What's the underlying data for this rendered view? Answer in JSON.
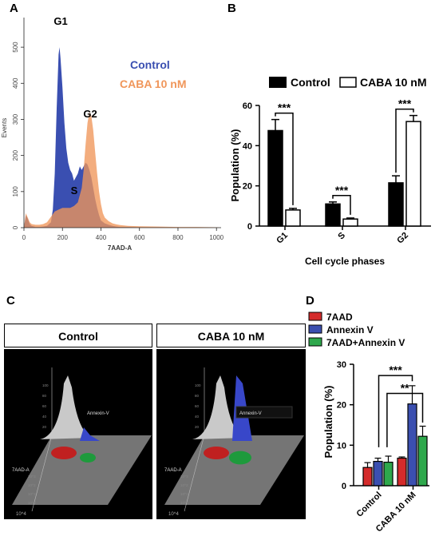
{
  "panels": {
    "a": "A",
    "b": "B",
    "c": "C",
    "d": "D"
  },
  "chart_data": [
    {
      "type": "area",
      "panel": "A",
      "ylabel": "Events",
      "xlabel": "7AAD-A",
      "xlim": [
        0,
        1024
      ],
      "ylim": [
        0,
        560
      ],
      "x_ticks": [
        "0",
        "200",
        "400",
        "600",
        "800",
        "1000"
      ],
      "y_ticks": [
        "0",
        "100",
        "200",
        "300",
        "400",
        "500"
      ],
      "annotations": [
        "G1",
        "S",
        "G2"
      ],
      "legend": [
        "Control",
        "CABA 10 nM"
      ],
      "colors": {
        "Control": "#3a4fb1",
        "CABA": "#f0965a"
      },
      "series": [
        {
          "name": "Control",
          "x": [
            0,
            10,
            20,
            30,
            40,
            60,
            80,
            100,
            120,
            140,
            150,
            160,
            170,
            180,
            185,
            190,
            200,
            210,
            220,
            230,
            240,
            250,
            260,
            270,
            280,
            290,
            300,
            310,
            320,
            330,
            340,
            350,
            360,
            370,
            380,
            390,
            400,
            420,
            440,
            460,
            480,
            500,
            540,
            600,
            700,
            800,
            900,
            1024
          ],
          "y": [
            0,
            35,
            25,
            10,
            5,
            2,
            2,
            3,
            5,
            15,
            50,
            150,
            330,
            480,
            500,
            470,
            390,
            290,
            220,
            180,
            160,
            150,
            130,
            140,
            150,
            170,
            160,
            170,
            180,
            175,
            160,
            140,
            110,
            80,
            55,
            35,
            20,
            12,
            8,
            5,
            3,
            2,
            2,
            1,
            1,
            0,
            0,
            0
          ]
        },
        {
          "name": "CABA 10 nM",
          "x": [
            0,
            10,
            20,
            30,
            40,
            60,
            80,
            100,
            120,
            140,
            160,
            180,
            200,
            220,
            240,
            260,
            280,
            300,
            310,
            320,
            330,
            340,
            350,
            360,
            370,
            380,
            390,
            400,
            410,
            420,
            440,
            460,
            480,
            500,
            540,
            600,
            700,
            800,
            900,
            1000,
            1024
          ],
          "y": [
            0,
            40,
            28,
            15,
            10,
            8,
            8,
            10,
            15,
            30,
            45,
            50,
            55,
            55,
            55,
            60,
            70,
            110,
            160,
            230,
            290,
            320,
            310,
            270,
            210,
            150,
            100,
            65,
            40,
            28,
            18,
            12,
            9,
            7,
            5,
            4,
            3,
            2,
            2,
            1,
            0
          ]
        }
      ]
    },
    {
      "type": "bar",
      "panel": "B",
      "ylabel": "Population (%)",
      "xlabel": "Cell cycle phases",
      "categories": [
        "G1",
        "S",
        "G2"
      ],
      "ylim": [
        0,
        60
      ],
      "y_ticks": [
        "0",
        "20",
        "40",
        "60"
      ],
      "legend_placement": "top",
      "series": [
        {
          "name": "Control",
          "values": [
            47.5,
            11,
            21.5
          ],
          "errors": [
            5.5,
            1,
            3.5
          ]
        },
        {
          "name": "CABA 10 nM",
          "values": [
            8,
            3.5,
            52
          ],
          "errors": [
            0.8,
            0.5,
            3
          ]
        }
      ],
      "significance": [
        "***",
        "***",
        "***"
      ]
    },
    {
      "type": "bar",
      "panel": "D",
      "ylabel": "Population (%)",
      "categories": [
        "Control",
        "CABA 10 nM"
      ],
      "ylim": [
        0,
        30
      ],
      "y_ticks": [
        "0",
        "10",
        "20",
        "30"
      ],
      "legend_placement": "top",
      "series": [
        {
          "name": "7AAD",
          "color": "#d42b2b",
          "values": [
            4.5,
            6.8
          ],
          "errors": [
            1.2,
            0.3
          ]
        },
        {
          "name": "Annexin V",
          "color": "#3b4fb0",
          "values": [
            6.0,
            20.2
          ],
          "errors": [
            0.8,
            4.5
          ]
        },
        {
          "name": "7AAD+Annexin V",
          "color": "#2ea84c",
          "values": [
            5.8,
            12.2
          ],
          "errors": [
            1.5,
            2.5
          ]
        }
      ],
      "significance": [
        "***",
        "**"
      ]
    }
  ],
  "panel_c": {
    "headers": [
      "Control",
      "CABA 10 nM"
    ],
    "axis_labels": {
      "z_axis": "7AAD-A",
      "annexin": "Annexin-V",
      "corner": "10^4"
    },
    "z_ticks": [
      "100",
      "80",
      "60",
      "40",
      "20",
      "10^3",
      "10^2",
      "10^1",
      "10^0"
    ]
  }
}
